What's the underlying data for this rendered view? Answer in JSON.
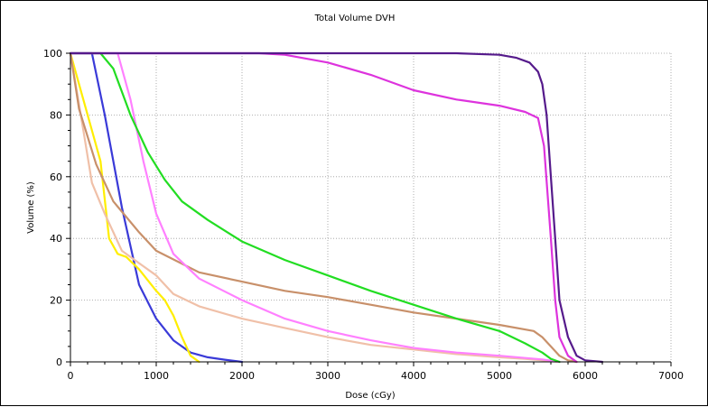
{
  "chart_data": {
    "type": "line",
    "title": "Total Volume DVH",
    "xlabel": "Dose (cGy)",
    "ylabel": "Volume (%)",
    "xlim": [
      0,
      7000
    ],
    "ylim": [
      0,
      100
    ],
    "x_ticks": [
      "0",
      "1000",
      "2000",
      "3000",
      "4000",
      "5000",
      "6000",
      "7000"
    ],
    "y_ticks": [
      "0",
      "20",
      "40",
      "60",
      "80",
      "100"
    ],
    "grid": true,
    "legend": "none",
    "series": [
      {
        "color": "#3a3ad8",
        "points": [
          [
            0,
            100
          ],
          [
            250,
            100
          ],
          [
            400,
            80
          ],
          [
            600,
            50
          ],
          [
            800,
            25
          ],
          [
            1000,
            14
          ],
          [
            1200,
            7
          ],
          [
            1400,
            3
          ],
          [
            1600,
            1.5
          ],
          [
            1800,
            0.7
          ],
          [
            2000,
            0
          ]
        ]
      },
      {
        "color": "#ffee00",
        "points": [
          [
            0,
            100
          ],
          [
            100,
            90
          ],
          [
            250,
            75
          ],
          [
            350,
            65
          ],
          [
            450,
            40
          ],
          [
            550,
            35
          ],
          [
            650,
            34
          ],
          [
            800,
            30
          ],
          [
            1000,
            23
          ],
          [
            1100,
            20
          ],
          [
            1200,
            15
          ],
          [
            1300,
            8
          ],
          [
            1400,
            2
          ],
          [
            1500,
            0
          ]
        ]
      },
      {
        "color": "#f0c0a8",
        "points": [
          [
            0,
            100
          ],
          [
            60,
            90
          ],
          [
            150,
            75
          ],
          [
            250,
            58
          ],
          [
            400,
            48
          ],
          [
            600,
            36
          ],
          [
            800,
            32
          ],
          [
            1000,
            28
          ],
          [
            1200,
            22
          ],
          [
            1500,
            18
          ],
          [
            2000,
            14
          ],
          [
            2500,
            11
          ],
          [
            3000,
            8
          ],
          [
            3500,
            5.5
          ],
          [
            4000,
            4
          ],
          [
            4500,
            2.5
          ],
          [
            5000,
            1.5
          ],
          [
            5300,
            1
          ],
          [
            5500,
            0.5
          ],
          [
            5700,
            0
          ]
        ]
      },
      {
        "color": "#c8906a",
        "points": [
          [
            0,
            100
          ],
          [
            100,
            82
          ],
          [
            300,
            64
          ],
          [
            500,
            52
          ],
          [
            800,
            42
          ],
          [
            1000,
            36
          ],
          [
            1500,
            29
          ],
          [
            2000,
            26
          ],
          [
            2500,
            23
          ],
          [
            3000,
            21
          ],
          [
            3500,
            18.5
          ],
          [
            4000,
            16
          ],
          [
            4500,
            14
          ],
          [
            5000,
            12
          ],
          [
            5400,
            10
          ],
          [
            5500,
            8
          ],
          [
            5600,
            5
          ],
          [
            5700,
            2
          ],
          [
            5800,
            0.5
          ],
          [
            5900,
            0
          ]
        ]
      },
      {
        "color": "#ff80ff",
        "points": [
          [
            0,
            100
          ],
          [
            550,
            100
          ],
          [
            700,
            85
          ],
          [
            850,
            65
          ],
          [
            1000,
            48
          ],
          [
            1200,
            35
          ],
          [
            1500,
            27
          ],
          [
            2000,
            20
          ],
          [
            2500,
            14
          ],
          [
            3000,
            10
          ],
          [
            3500,
            7
          ],
          [
            4000,
            4.5
          ],
          [
            4500,
            3
          ],
          [
            5000,
            2
          ],
          [
            5500,
            0.8
          ],
          [
            5700,
            0
          ]
        ]
      },
      {
        "color": "#22dd22",
        "points": [
          [
            0,
            100
          ],
          [
            350,
            100
          ],
          [
            500,
            95
          ],
          [
            700,
            80
          ],
          [
            900,
            68
          ],
          [
            1100,
            59
          ],
          [
            1300,
            52
          ],
          [
            1600,
            46
          ],
          [
            2000,
            39
          ],
          [
            2500,
            33
          ],
          [
            3000,
            28
          ],
          [
            3500,
            23
          ],
          [
            4000,
            18.5
          ],
          [
            4500,
            14
          ],
          [
            5000,
            10
          ],
          [
            5300,
            6
          ],
          [
            5500,
            3
          ],
          [
            5600,
            1
          ],
          [
            5700,
            0
          ]
        ]
      },
      {
        "color": "#dd33dd",
        "points": [
          [
            0,
            100
          ],
          [
            2200,
            100
          ],
          [
            2500,
            99.5
          ],
          [
            3000,
            97
          ],
          [
            3500,
            93
          ],
          [
            4000,
            88
          ],
          [
            4500,
            85
          ],
          [
            5000,
            83
          ],
          [
            5300,
            81
          ],
          [
            5450,
            79
          ],
          [
            5520,
            70
          ],
          [
            5560,
            55
          ],
          [
            5600,
            40
          ],
          [
            5650,
            20
          ],
          [
            5700,
            8
          ],
          [
            5800,
            2
          ],
          [
            5900,
            0
          ]
        ]
      },
      {
        "color": "#551a8b",
        "points": [
          [
            0,
            100
          ],
          [
            4500,
            100
          ],
          [
            5000,
            99.5
          ],
          [
            5200,
            98.5
          ],
          [
            5350,
            97
          ],
          [
            5450,
            94
          ],
          [
            5500,
            90
          ],
          [
            5550,
            80
          ],
          [
            5600,
            60
          ],
          [
            5650,
            40
          ],
          [
            5700,
            20
          ],
          [
            5800,
            8
          ],
          [
            5900,
            2
          ],
          [
            6000,
            0.5
          ],
          [
            6200,
            0
          ]
        ]
      }
    ]
  }
}
